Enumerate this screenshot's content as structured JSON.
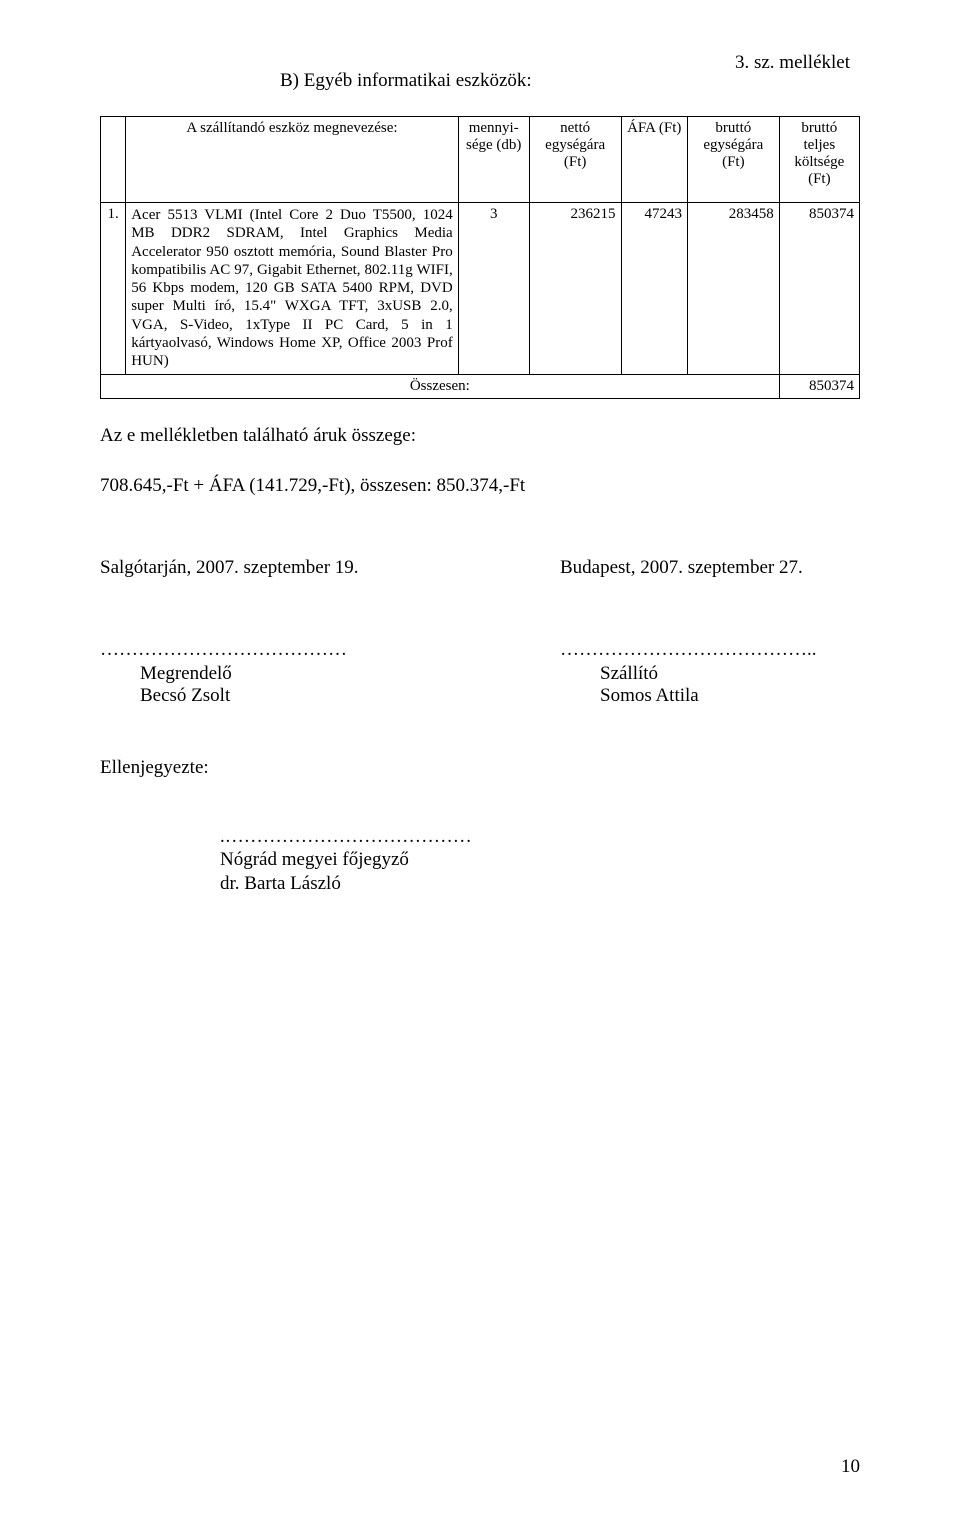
{
  "annex_label": "3. sz. melléklet",
  "section_title": "B) Egyéb informatikai eszközök:",
  "table": {
    "headers": {
      "idx": "",
      "desc": "A szállítandó eszköz megnevezése:",
      "qty": "mennyi-sége (db)",
      "net": "nettó egységára (Ft)",
      "afa": "ÁFA (Ft)",
      "gross": "bruttó egységára (Ft)",
      "total": "bruttó teljes költsége (Ft)"
    },
    "row": {
      "idx": "1.",
      "desc": "Acer 5513 VLMI (Intel Core 2 Duo T5500, 1024 MB DDR2 SDRAM, Intel Graphics Media Accelerator 950 osztott memória, Sound Blaster Pro kompatibilis AC 97, Gigabit Ethernet, 802.11g WIFI, 56 Kbps modem, 120 GB SATA 5400 RPM, DVD super Multi író, 15.4\" WXGA TFT, 3xUSB 2.0, VGA, S-Video, 1xType II PC Card, 5 in 1 kártyaolvasó, Windows Home XP, Office 2003 Prof HUN)",
      "qty": "3",
      "net": "236215",
      "afa": "47243",
      "gross": "283458",
      "total": "850374"
    },
    "sum_label": "Összesen:",
    "sum_value": "850374"
  },
  "line_after": "Az e mellékletben található áruk összege:",
  "line_total": "708.645,-Ft + ÁFA (141.729,-Ft), összesen: 850.374,-Ft",
  "dates": {
    "left": "Salgótarján, 2007. szeptember 19.",
    "right": "Budapest, 2007. szeptember 27."
  },
  "sign": {
    "left_dots": "…………………………………",
    "right_dots": "…………………………………..",
    "left_role": "Megrendelő",
    "left_name": "Becsó Zsolt",
    "right_role": "Szállító",
    "right_name": "Somos Attila"
  },
  "countersign_label": "Ellenjegyezte:",
  "cs": {
    "dots": ".…………………………………",
    "title": "Nógrád megyei főjegyző",
    "name": "dr. Barta László"
  },
  "page_number": "10",
  "colors": {
    "text": "#000000",
    "background": "#ffffff",
    "border": "#000000"
  },
  "fonts": {
    "body_pt": 15,
    "title_pt": 19,
    "table_pt": 15
  }
}
